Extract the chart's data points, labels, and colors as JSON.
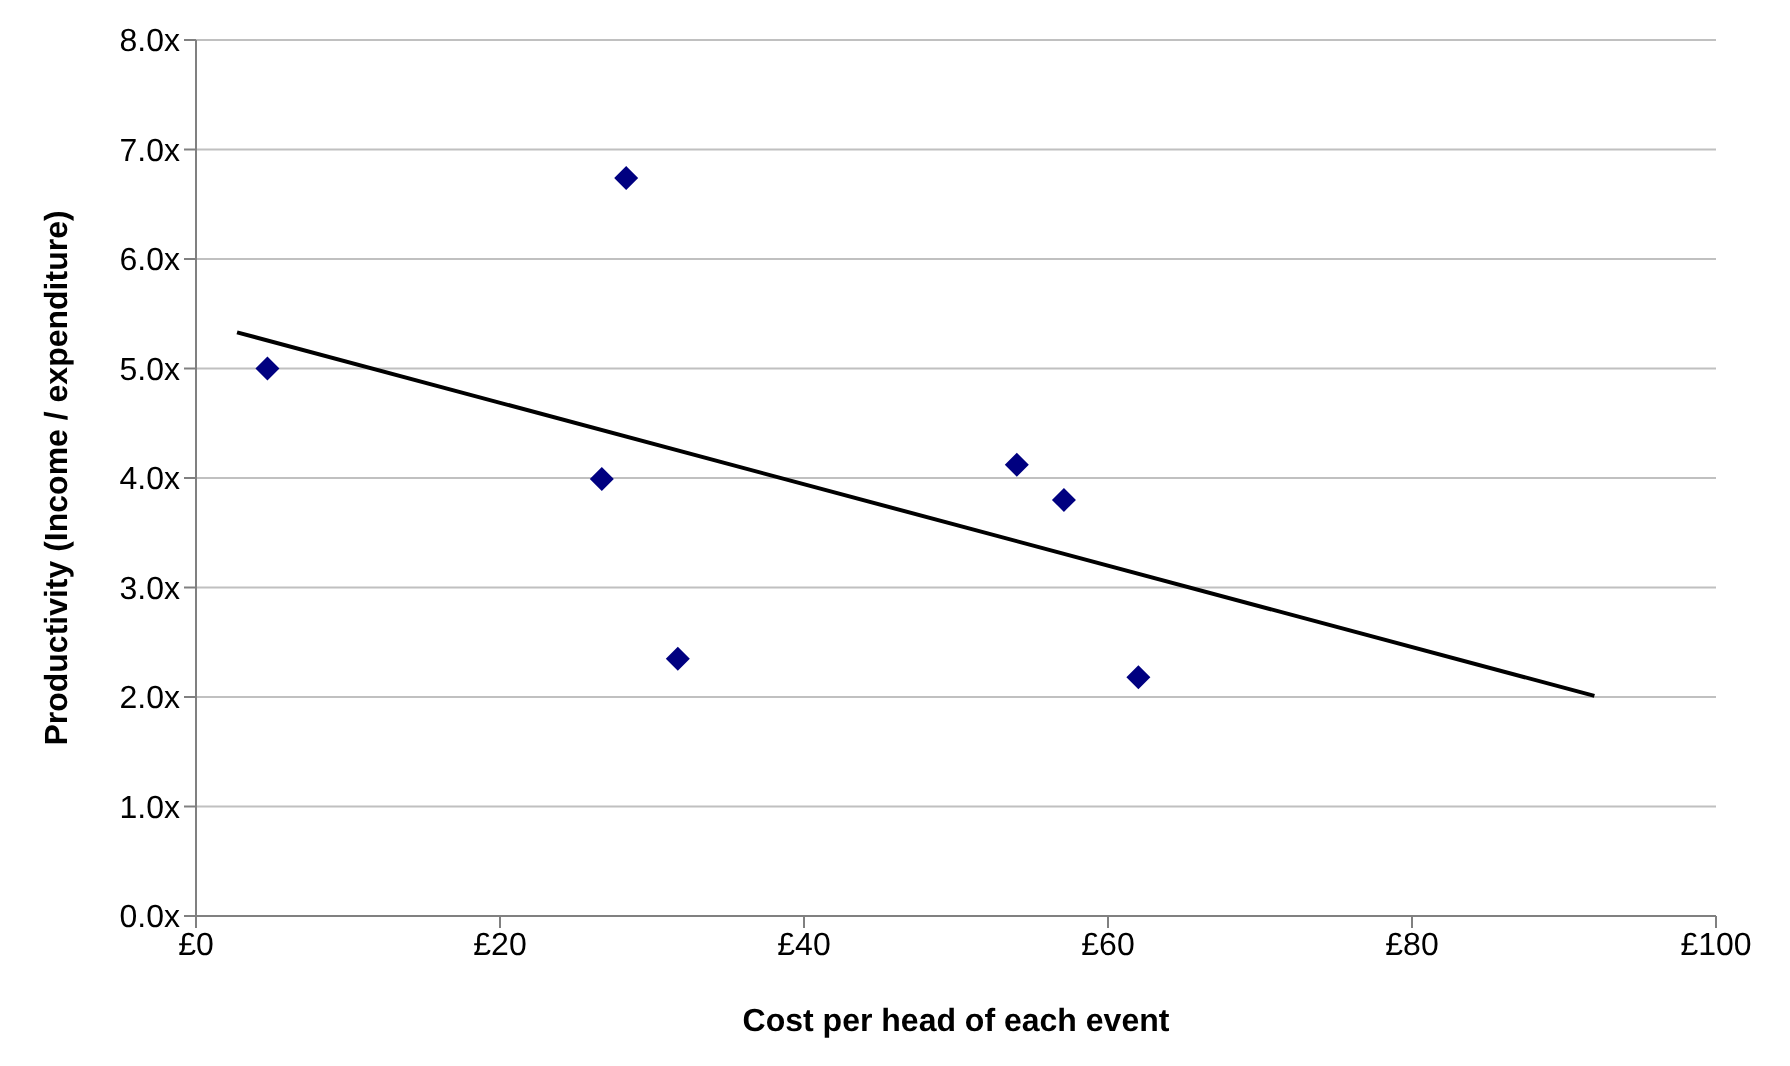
{
  "chart_data": {
    "type": "scatter",
    "xlabel": "Cost per head of each event",
    "ylabel": "Productivity (Income / expenditure)",
    "series": [
      {
        "color": "#000080",
        "marker": "diamond",
        "x": [
          4.7,
          28.3,
          26.7,
          31.7,
          54.0,
          57.1,
          62.0
        ],
        "values": [
          5.0,
          6.74,
          3.99,
          2.35,
          4.12,
          3.8,
          2.18
        ]
      },
      {
        "type": "line",
        "color": "#000000",
        "marker": "none",
        "line_style": "solid",
        "x": [
          2.7,
          92.0
        ],
        "values": [
          5.33,
          2.01
        ]
      }
    ],
    "xlim": [
      0,
      100
    ],
    "xticks": [
      {
        "value": 0,
        "label": "£0"
      },
      {
        "value": 20,
        "label": "£20"
      },
      {
        "value": 40,
        "label": "£40"
      },
      {
        "value": 60,
        "label": "£60"
      },
      {
        "value": 80,
        "label": "£80"
      },
      {
        "value": 100,
        "label": "£100"
      }
    ],
    "ylim": [
      0,
      8
    ],
    "yticks": [
      {
        "value": 0,
        "label": "0.0x"
      },
      {
        "value": 1,
        "label": "1.0x"
      },
      {
        "value": 2,
        "label": "2.0x"
      },
      {
        "value": 3,
        "label": "3.0x"
      },
      {
        "value": 4,
        "label": "4.0x"
      },
      {
        "value": 5,
        "label": "5.0x"
      },
      {
        "value": 6,
        "label": "6.0x"
      },
      {
        "value": 7,
        "label": "7.0x"
      },
      {
        "value": 8,
        "label": "8.0x"
      }
    ],
    "grid": "y"
  }
}
